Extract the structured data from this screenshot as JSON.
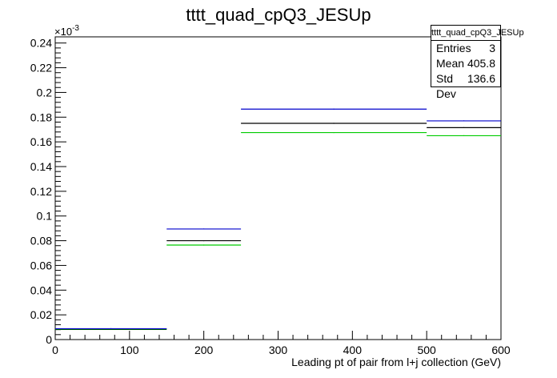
{
  "chart_data": {
    "type": "histogram",
    "title": "tttt_quad_cpQ3_JESUp",
    "xlabel": "Leading pt of pair from l+j collection (GeV)",
    "ylabel": "",
    "y_exponent_label": "×10^-3",
    "xlim": [
      0,
      600
    ],
    "ylim": [
      0,
      0.245
    ],
    "x_ticks": [
      0,
      100,
      200,
      300,
      400,
      500,
      600
    ],
    "y_ticks": [
      0,
      0.02,
      0.04,
      0.06,
      0.08,
      0.1,
      0.12,
      0.14,
      0.16,
      0.18,
      0.2,
      0.22,
      0.24
    ],
    "bin_edges": [
      0,
      150,
      250,
      500,
      600
    ],
    "series": [
      {
        "color": "#0000cc",
        "values": [
          0.0088,
          0.0895,
          0.1865,
          0.177
        ]
      },
      {
        "color": "#000000",
        "values": [
          0.0085,
          0.08,
          0.175,
          0.1715
        ]
      },
      {
        "color": "#00cc00",
        "values": [
          0.0082,
          0.0765,
          0.1675,
          0.165
        ]
      }
    ],
    "stats": {
      "title": "tttt_quad_cpQ3_JESUp",
      "rows": [
        {
          "label": "Entries",
          "value": "3"
        },
        {
          "label": "Mean",
          "value": "405.8"
        },
        {
          "label": "Std Dev",
          "value": "136.6"
        }
      ]
    }
  }
}
